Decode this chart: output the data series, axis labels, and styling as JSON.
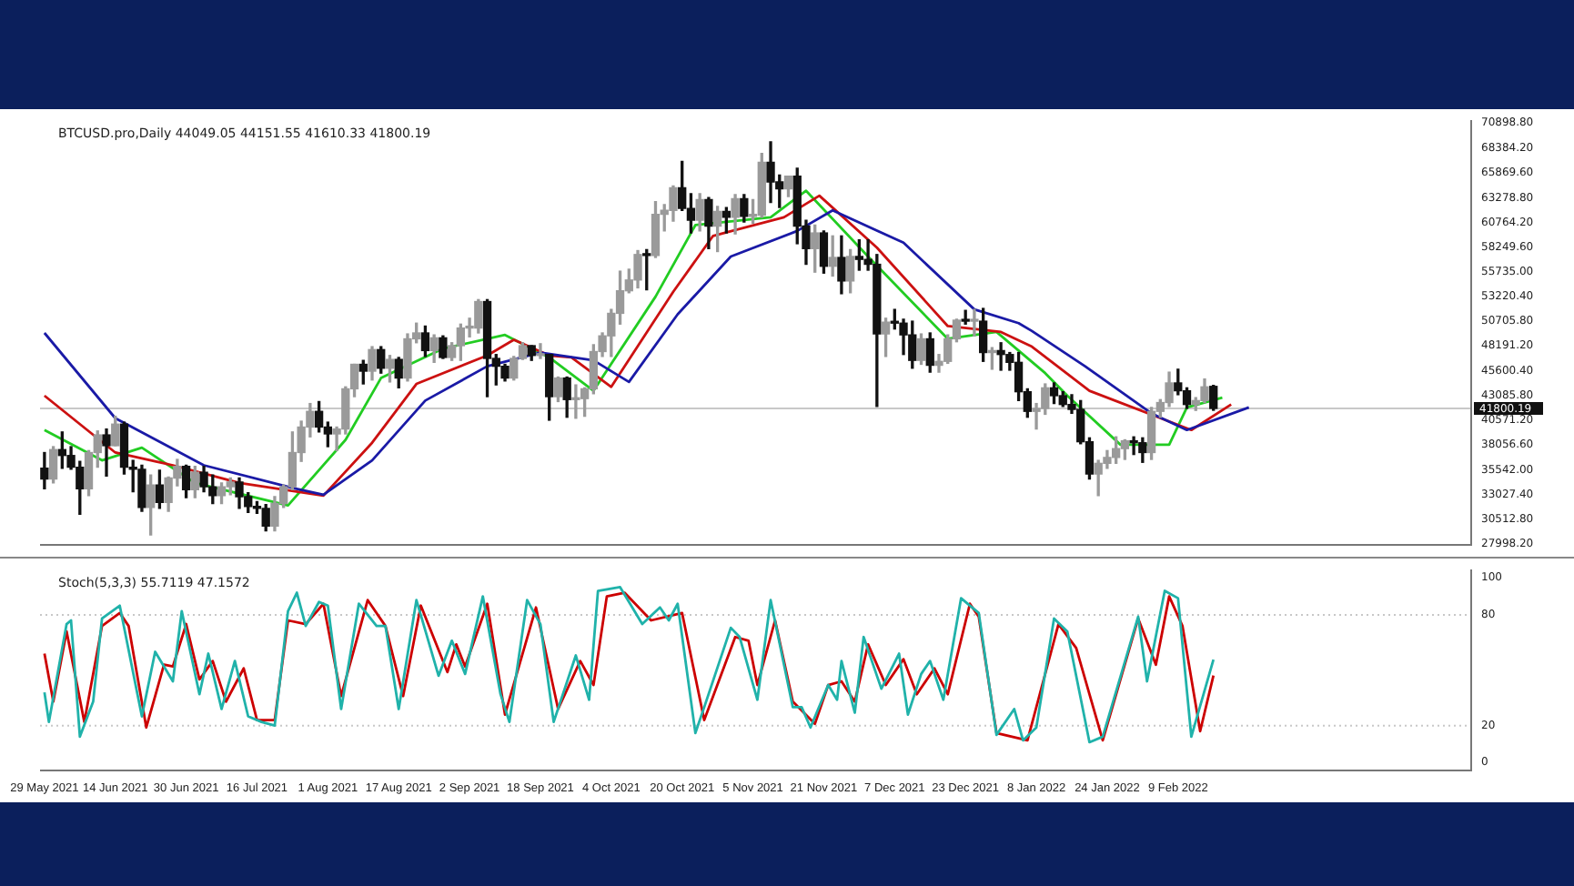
{
  "chart_data": [
    {
      "type": "candlestick",
      "title": "BTCUSD.pro,Daily 44049.05 44151.55 41610.33 41800.19",
      "tick_labels": "y",
      "xlim": [
        "2021-05-28",
        "2022-04-16"
      ],
      "ylim": [
        27900,
        71100
      ],
      "yticks": [
        {
          "value": 70898.8,
          "label": "70898.80"
        },
        {
          "value": 68384.2,
          "label": "68384.20"
        },
        {
          "value": 65869.6,
          "label": "65869.60"
        },
        {
          "value": 63278.8,
          "label": "63278.80"
        },
        {
          "value": 60764.2,
          "label": "60764.20"
        },
        {
          "value": 58249.6,
          "label": "58249.60"
        },
        {
          "value": 55735,
          "label": "55735.00"
        },
        {
          "value": 53220.4,
          "label": "53220.40"
        },
        {
          "value": 50705.8,
          "label": "50705.80"
        },
        {
          "value": 48191.2,
          "label": "48191.20"
        },
        {
          "value": 45600.4,
          "label": "45600.40"
        },
        {
          "value": 43085.8,
          "label": "43085.80"
        },
        {
          "value": 40571.2,
          "label": "40571.20"
        },
        {
          "value": 38056.6,
          "label": "38056.60"
        },
        {
          "value": 35542,
          "label": "35542.00"
        },
        {
          "value": 33027.4,
          "label": "33027.40"
        },
        {
          "value": 30512.8,
          "label": "30512.80"
        },
        {
          "value": 27998.2,
          "label": "27998.20"
        }
      ],
      "ref_lines": [
        {
          "axis": "y",
          "value": 41800.19,
          "label": "41800.19",
          "color": "#c8c8c8"
        }
      ],
      "x": [
        "2021-05-29",
        "2021-05-31",
        "2021-06-02",
        "2021-06-04",
        "2021-06-06",
        "2021-06-08",
        "2021-06-10",
        "2021-06-12",
        "2021-06-14",
        "2021-06-16",
        "2021-06-18",
        "2021-06-20",
        "2021-06-22",
        "2021-06-24",
        "2021-06-26",
        "2021-06-28",
        "2021-06-30",
        "2021-07-02",
        "2021-07-04",
        "2021-07-06",
        "2021-07-08",
        "2021-07-10",
        "2021-07-12",
        "2021-07-14",
        "2021-07-16",
        "2021-07-18",
        "2021-07-20",
        "2021-07-22",
        "2021-07-24",
        "2021-07-26",
        "2021-07-28",
        "2021-07-30",
        "2021-08-01",
        "2021-08-03",
        "2021-08-05",
        "2021-08-07",
        "2021-08-09",
        "2021-08-11",
        "2021-08-13",
        "2021-08-15",
        "2021-08-17",
        "2021-08-19",
        "2021-08-21",
        "2021-08-23",
        "2021-08-25",
        "2021-08-27",
        "2021-08-29",
        "2021-08-31",
        "2021-09-02",
        "2021-09-04",
        "2021-09-06",
        "2021-09-08",
        "2021-09-10",
        "2021-09-12",
        "2021-09-14",
        "2021-09-16",
        "2021-09-18",
        "2021-09-20",
        "2021-09-22",
        "2021-09-24",
        "2021-09-26",
        "2021-09-28",
        "2021-09-30",
        "2021-10-02",
        "2021-10-04",
        "2021-10-06",
        "2021-10-08",
        "2021-10-10",
        "2021-10-12",
        "2021-10-14",
        "2021-10-16",
        "2021-10-18",
        "2021-10-20",
        "2021-10-22",
        "2021-10-24",
        "2021-10-26",
        "2021-10-28",
        "2021-10-30",
        "2021-11-01",
        "2021-11-03",
        "2021-11-05",
        "2021-11-07",
        "2021-11-09",
        "2021-11-11",
        "2021-11-13",
        "2021-11-15",
        "2021-11-17",
        "2021-11-19",
        "2021-11-21",
        "2021-11-23",
        "2021-11-25",
        "2021-11-27",
        "2021-11-29",
        "2021-12-01",
        "2021-12-03",
        "2021-12-05",
        "2021-12-07",
        "2021-12-09",
        "2021-12-11",
        "2021-12-13",
        "2021-12-15",
        "2021-12-17",
        "2021-12-19",
        "2021-12-21",
        "2021-12-23",
        "2021-12-25",
        "2021-12-27",
        "2021-12-29",
        "2021-12-31",
        "2022-01-02",
        "2022-01-04",
        "2022-01-06",
        "2022-01-08",
        "2022-01-10",
        "2022-01-12",
        "2022-01-14",
        "2022-01-16",
        "2022-01-18",
        "2022-01-20",
        "2022-01-22",
        "2022-01-24",
        "2022-01-26",
        "2022-01-28",
        "2022-01-30",
        "2022-02-01",
        "2022-02-03",
        "2022-02-05",
        "2022-02-07",
        "2022-02-09",
        "2022-02-11",
        "2022-02-13",
        "2022-02-15",
        "2022-02-17"
      ],
      "ohlc": [
        [
          35700,
          37300,
          33600,
          34600
        ],
        [
          34600,
          37900,
          34200,
          37600
        ],
        [
          37600,
          39400,
          35700,
          37000
        ],
        [
          37000,
          37900,
          35600,
          35800
        ],
        [
          35800,
          36400,
          31000,
          33600
        ],
        [
          33600,
          37500,
          32900,
          37300
        ],
        [
          37300,
          39500,
          35800,
          39100
        ],
        [
          39100,
          39700,
          34900,
          38000
        ],
        [
          38000,
          41000,
          38000,
          40200
        ],
        [
          40200,
          40400,
          35100,
          35800
        ],
        [
          35800,
          36500,
          33300,
          35600
        ],
        [
          35600,
          36000,
          31300,
          31700
        ],
        [
          31700,
          35000,
          28900,
          34000
        ],
        [
          34000,
          35500,
          31600,
          32200
        ],
        [
          32200,
          34800,
          31300,
          34700
        ],
        [
          34700,
          36600,
          33900,
          35900
        ],
        [
          35900,
          36000,
          32700,
          33500
        ],
        [
          33500,
          35900,
          32700,
          35300
        ],
        [
          35300,
          35900,
          33300,
          33800
        ],
        [
          33800,
          35000,
          32100,
          32900
        ],
        [
          32900,
          34200,
          32100,
          33800
        ],
        [
          33800,
          34700,
          33000,
          34300
        ],
        [
          34300,
          34700,
          31600,
          32800
        ],
        [
          32800,
          33200,
          31200,
          31800
        ],
        [
          31800,
          32300,
          31100,
          31600
        ],
        [
          31600,
          32000,
          29300,
          29800
        ],
        [
          29800,
          32800,
          29300,
          32100
        ],
        [
          32100,
          34000,
          31700,
          33800
        ],
        [
          33800,
          39400,
          33500,
          37300
        ],
        [
          37300,
          40500,
          36400,
          39900
        ],
        [
          39900,
          42300,
          38900,
          41500
        ],
        [
          41500,
          42500,
          39400,
          39900
        ],
        [
          39900,
          40400,
          37900,
          39200
        ],
        [
          39200,
          39900,
          37500,
          39700
        ],
        [
          39700,
          44000,
          39200,
          43800
        ],
        [
          43800,
          46300,
          43000,
          46300
        ],
        [
          46300,
          46700,
          44300,
          45600
        ],
        [
          45600,
          48100,
          44700,
          47800
        ],
        [
          47800,
          48100,
          45400,
          45900
        ],
        [
          45900,
          47200,
          44500,
          46800
        ],
        [
          46800,
          47000,
          43900,
          44900
        ],
        [
          44900,
          49400,
          44600,
          48900
        ],
        [
          48900,
          50500,
          48500,
          49500
        ],
        [
          49500,
          50200,
          47100,
          47700
        ],
        [
          47700,
          49300,
          46500,
          49000
        ],
        [
          49000,
          49200,
          46900,
          47000
        ],
        [
          47000,
          48500,
          46700,
          48200
        ],
        [
          48200,
          50400,
          46700,
          50000
        ],
        [
          50000,
          51000,
          49100,
          50000
        ],
        [
          50000,
          52900,
          49500,
          52700
        ],
        [
          52700,
          52900,
          43000,
          46900
        ],
        [
          46900,
          47300,
          44200,
          46100
        ],
        [
          46100,
          46300,
          44600,
          44900
        ],
        [
          44900,
          47100,
          44700,
          46900
        ],
        [
          46900,
          48500,
          46800,
          48200
        ],
        [
          48200,
          48200,
          46700,
          47200
        ],
        [
          47200,
          48400,
          46900,
          47300
        ],
        [
          47300,
          47300,
          40600,
          43000
        ],
        [
          43000,
          45000,
          42500,
          44900
        ],
        [
          44900,
          45000,
          40900,
          42700
        ],
        [
          42700,
          44200,
          40800,
          42800
        ],
        [
          42800,
          43900,
          41000,
          43800
        ],
        [
          43800,
          48300,
          43300,
          47600
        ],
        [
          47600,
          49500,
          47100,
          49200
        ],
        [
          49200,
          51900,
          47100,
          51500
        ],
        [
          51500,
          55800,
          50400,
          53800
        ],
        [
          53800,
          56000,
          53600,
          54900
        ],
        [
          54900,
          57900,
          54100,
          57500
        ],
        [
          57500,
          58000,
          53900,
          57400
        ],
        [
          57400,
          62900,
          57200,
          61600
        ],
        [
          61600,
          62600,
          59900,
          62000
        ],
        [
          62000,
          64500,
          60900,
          64300
        ],
        [
          64300,
          67000,
          62000,
          62200
        ],
        [
          62200,
          63700,
          59700,
          61000
        ],
        [
          61000,
          63700,
          59900,
          63100
        ],
        [
          63100,
          63300,
          58100,
          60400
        ],
        [
          60400,
          62400,
          57800,
          61900
        ],
        [
          61900,
          62300,
          59700,
          61300
        ],
        [
          61300,
          63600,
          59600,
          63200
        ],
        [
          63200,
          63600,
          60800,
          61400
        ],
        [
          61400,
          63100,
          60700,
          61500
        ],
        [
          61500,
          67800,
          61300,
          66900
        ],
        [
          66900,
          69000,
          62800,
          64900
        ],
        [
          64900,
          65600,
          62300,
          64200
        ],
        [
          64200,
          65500,
          63400,
          65500
        ],
        [
          65500,
          66300,
          58600,
          60400
        ],
        [
          60400,
          61000,
          56500,
          58100
        ],
        [
          58100,
          60500,
          55700,
          59700
        ],
        [
          59700,
          59900,
          55600,
          56300
        ],
        [
          56300,
          59400,
          55300,
          57200
        ],
        [
          57200,
          59400,
          53500,
          54800
        ],
        [
          54800,
          58000,
          53600,
          57300
        ],
        [
          57300,
          59000,
          55900,
          57000
        ],
        [
          57000,
          59000,
          55900,
          56500
        ],
        [
          56500,
          57500,
          42000,
          49400
        ],
        [
          49400,
          51000,
          47100,
          50600
        ],
        [
          50600,
          51900,
          49900,
          50500
        ],
        [
          50500,
          50900,
          47300,
          49300
        ],
        [
          49300,
          50700,
          45900,
          46700
        ],
        [
          46700,
          49400,
          46300,
          48900
        ],
        [
          48900,
          49500,
          45500,
          46200
        ],
        [
          46200,
          47300,
          45500,
          46600
        ],
        [
          46600,
          49300,
          46400,
          48900
        ],
        [
          48900,
          50900,
          48600,
          50800
        ],
        [
          50800,
          51800,
          50400,
          50700
        ],
        [
          50700,
          51900,
          49200,
          50700
        ],
        [
          50700,
          52000,
          46600,
          47500
        ],
        [
          47500,
          48000,
          45800,
          47700
        ],
        [
          47700,
          48500,
          45700,
          47300
        ],
        [
          47300,
          47500,
          45700,
          46500
        ],
        [
          46500,
          47500,
          42600,
          43500
        ],
        [
          43500,
          43800,
          40900,
          41500
        ],
        [
          41500,
          42300,
          39700,
          41800
        ],
        [
          41800,
          44300,
          41200,
          43900
        ],
        [
          43900,
          44400,
          42300,
          43100
        ],
        [
          43100,
          43500,
          42000,
          42200
        ],
        [
          42200,
          43200,
          41300,
          41700
        ],
        [
          41700,
          42600,
          38200,
          38400
        ],
        [
          38400,
          38800,
          34600,
          35100
        ],
        [
          35100,
          36500,
          32900,
          36200
        ],
        [
          36200,
          37500,
          35700,
          36800
        ],
        [
          36800,
          38900,
          36200,
          37700
        ],
        [
          37700,
          38600,
          36600,
          38500
        ],
        [
          38500,
          38900,
          37100,
          38300
        ],
        [
          38300,
          38800,
          36300,
          37300
        ],
        [
          37300,
          41900,
          36600,
          41500
        ],
        [
          41500,
          42700,
          40900,
          42400
        ],
        [
          42400,
          45500,
          42000,
          44400
        ],
        [
          44400,
          45800,
          43200,
          43600
        ],
        [
          43600,
          43900,
          41800,
          42200
        ],
        [
          42200,
          42900,
          41600,
          42600
        ],
        [
          42600,
          44800,
          42400,
          44000
        ],
        [
          44049.05,
          44151.55,
          41610.33,
          41800.19
        ]
      ],
      "series": [
        {
          "type": "line",
          "color": "#1a1aa6",
          "x": [
            "2021-05-29",
            "2021-06-14",
            "2021-07-04",
            "2021-07-24",
            "2021-07-31",
            "2021-08-11",
            "2021-08-23",
            "2021-09-06",
            "2021-09-18",
            "2021-09-30",
            "2021-10-08",
            "2021-10-19",
            "2021-10-31",
            "2021-11-15",
            "2021-11-23",
            "2021-12-09",
            "2021-12-25",
            "2022-01-04",
            "2022-01-07",
            "2022-01-19",
            "2022-02-03",
            "2022-02-11",
            "2022-02-25"
          ],
          "values": [
            49500,
            40800,
            36000,
            33700,
            33000,
            36500,
            42600,
            46100,
            47500,
            46700,
            44500,
            51400,
            57300,
            59900,
            62000,
            58700,
            51900,
            50500,
            49700,
            46100,
            41300,
            39600,
            41900
          ]
        },
        {
          "type": "line",
          "color": "#cc1111",
          "x": [
            "2021-05-29",
            "2021-06-14",
            "2021-06-27",
            "2021-07-12",
            "2021-07-31",
            "2021-08-11",
            "2021-08-21",
            "2021-09-06",
            "2021-09-12",
            "2021-09-20",
            "2021-09-25",
            "2021-10-04",
            "2021-10-18",
            "2021-10-27",
            "2021-11-12",
            "2021-11-20",
            "2021-12-03",
            "2021-12-19",
            "2021-12-31",
            "2022-01-07",
            "2022-01-20",
            "2022-02-12",
            "2022-02-21"
          ],
          "values": [
            43100,
            37300,
            36000,
            34200,
            32900,
            38300,
            44300,
            47200,
            48800,
            47200,
            47000,
            44000,
            53700,
            59400,
            61300,
            63500,
            58200,
            50200,
            49600,
            48100,
            43600,
            39600,
            42200
          ]
        },
        {
          "type": "line",
          "color": "#22cc22",
          "x": [
            "2021-05-29",
            "2021-06-11",
            "2021-06-20",
            "2021-07-02",
            "2021-07-23",
            "2021-08-05",
            "2021-08-13",
            "2021-08-27",
            "2021-09-10",
            "2021-09-20",
            "2021-09-30",
            "2021-10-14",
            "2021-10-23",
            "2021-11-09",
            "2021-11-17",
            "2021-12-01",
            "2021-12-19",
            "2021-12-30",
            "2022-01-10",
            "2022-01-15",
            "2022-01-27",
            "2022-02-07",
            "2022-02-11",
            "2022-02-19"
          ],
          "values": [
            39600,
            36500,
            37800,
            34200,
            31900,
            38600,
            44900,
            47900,
            49300,
            47000,
            43600,
            53200,
            60500,
            61300,
            64000,
            57300,
            48900,
            49600,
            45400,
            43100,
            38100,
            38100,
            41900,
            42900
          ]
        }
      ]
    },
    {
      "type": "line",
      "title": "Stoch(5,3,3) 55.7119 47.1572",
      "xlim": [
        "2021-05-28",
        "2022-04-16"
      ],
      "ylim": [
        -4,
        104
      ],
      "yticks": [
        0,
        20,
        80,
        100
      ],
      "xticks": [
        {
          "value": "2021-05-29",
          "label": "29 May 2021"
        },
        {
          "value": "2021-06-14",
          "label": "14 Jun 2021"
        },
        {
          "value": "2021-06-30",
          "label": "30 Jun 2021"
        },
        {
          "value": "2021-07-16",
          "label": "16 Jul 2021"
        },
        {
          "value": "2021-08-01",
          "label": "1 Aug 2021"
        },
        {
          "value": "2021-08-17",
          "label": "17 Aug 2021"
        },
        {
          "value": "2021-09-02",
          "label": "2 Sep 2021"
        },
        {
          "value": "2021-09-18",
          "label": "18 Sep 2021"
        },
        {
          "value": "2021-10-04",
          "label": "4 Oct 2021"
        },
        {
          "value": "2021-10-20",
          "label": "20 Oct 2021"
        },
        {
          "value": "2021-11-05",
          "label": "5 Nov 2021"
        },
        {
          "value": "2021-11-21",
          "label": "21 Nov 2021"
        },
        {
          "value": "2021-12-07",
          "label": "7 Dec 2021"
        },
        {
          "value": "2021-12-23",
          "label": "23 Dec 2021"
        },
        {
          "value": "2022-01-08",
          "label": "8 Jan 2022"
        },
        {
          "value": "2022-01-24",
          "label": "24 Jan 2022"
        },
        {
          "value": "2022-02-09",
          "label": "9 Feb 2022"
        }
      ],
      "ref_lines": [
        {
          "axis": "y",
          "value": 80,
          "color": "#c8c8c8",
          "line_style": "dotted"
        },
        {
          "axis": "y",
          "value": 20,
          "color": "#c8c8c8",
          "line_style": "dotted"
        }
      ],
      "series": [
        {
          "color": "#20b2aa",
          "x": [
            "2021-05-29",
            "2021-05-30",
            "2021-06-03",
            "2021-06-04",
            "2021-06-06",
            "2021-06-09",
            "2021-06-11",
            "2021-06-15",
            "2021-06-20",
            "2021-06-23",
            "2021-06-27",
            "2021-06-29",
            "2021-07-03",
            "2021-07-05",
            "2021-07-08",
            "2021-07-11",
            "2021-07-14",
            "2021-07-17",
            "2021-07-20",
            "2021-07-23",
            "2021-07-25",
            "2021-07-27",
            "2021-07-30",
            "2021-08-01",
            "2021-08-04",
            "2021-08-08",
            "2021-08-12",
            "2021-08-14",
            "2021-08-17",
            "2021-08-21",
            "2021-08-26",
            "2021-08-29",
            "2021-09-01",
            "2021-09-05",
            "2021-09-09",
            "2021-09-11",
            "2021-09-15",
            "2021-09-18",
            "2021-09-21",
            "2021-09-26",
            "2021-09-29",
            "2021-10-01",
            "2021-10-06",
            "2021-10-11",
            "2021-10-15",
            "2021-10-17",
            "2021-10-19",
            "2021-10-23",
            "2021-10-25",
            "2021-10-31",
            "2021-11-02",
            "2021-11-06",
            "2021-11-09",
            "2021-11-14",
            "2021-11-16",
            "2021-11-18",
            "2021-11-22",
            "2021-11-24",
            "2021-11-25",
            "2021-11-28",
            "2021-11-30",
            "2021-12-04",
            "2021-12-08",
            "2021-12-10",
            "2021-12-13",
            "2021-12-15",
            "2021-12-18",
            "2021-12-22",
            "2021-12-26",
            "2021-12-30",
            "2022-01-03",
            "2022-01-05",
            "2022-01-08",
            "2022-01-12",
            "2022-01-15",
            "2022-01-20",
            "2022-01-23",
            "2022-01-31",
            "2022-02-02",
            "2022-02-06",
            "2022-02-09",
            "2022-02-12",
            "2022-02-17"
          ],
          "values": [
            38,
            22,
            75,
            77,
            14,
            33,
            78,
            85,
            25,
            60,
            44,
            82,
            37,
            59,
            29,
            55,
            25,
            22,
            20,
            82,
            92,
            74,
            87,
            85,
            29,
            86,
            74,
            74,
            29,
            88,
            47,
            66,
            48,
            90,
            37,
            22,
            88,
            75,
            22,
            58,
            34,
            93,
            95,
            75,
            84,
            77,
            86,
            16,
            30,
            73,
            68,
            34,
            88,
            30,
            30,
            19,
            42,
            34,
            55,
            27,
            68,
            40,
            59,
            26,
            48,
            55,
            34,
            89,
            81,
            15,
            29,
            12,
            19,
            78,
            71,
            11,
            14,
            79,
            44,
            93,
            89,
            14,
            55.7119
          ]
        },
        {
          "color": "#cc0000",
          "x": [
            "2021-05-29",
            "2021-05-31",
            "2021-06-03",
            "2021-06-07",
            "2021-06-11",
            "2021-06-15",
            "2021-06-17",
            "2021-06-21",
            "2021-06-25",
            "2021-06-27",
            "2021-06-30",
            "2021-07-03",
            "2021-07-06",
            "2021-07-09",
            "2021-07-13",
            "2021-07-16",
            "2021-07-20",
            "2021-07-23",
            "2021-07-27",
            "2021-07-31",
            "2021-08-04",
            "2021-08-10",
            "2021-08-14",
            "2021-08-18",
            "2021-08-22",
            "2021-08-28",
            "2021-08-30",
            "2021-09-01",
            "2021-09-06",
            "2021-09-10",
            "2021-09-17",
            "2021-09-22",
            "2021-09-27",
            "2021-09-30",
            "2021-10-03",
            "2021-10-07",
            "2021-10-13",
            "2021-10-20",
            "2021-10-25",
            "2021-11-01",
            "2021-11-04",
            "2021-11-06",
            "2021-11-10",
            "2021-11-14",
            "2021-11-19",
            "2021-11-22",
            "2021-11-25",
            "2021-11-28",
            "2021-12-01",
            "2021-12-05",
            "2021-12-09",
            "2021-12-12",
            "2021-12-16",
            "2021-12-19",
            "2021-12-24",
            "2021-12-26",
            "2021-12-30",
            "2022-01-06",
            "2022-01-13",
            "2022-01-17",
            "2022-01-23",
            "2022-01-31",
            "2022-02-04",
            "2022-02-07",
            "2022-02-10",
            "2022-02-14",
            "2022-02-17"
          ],
          "values": [
            59,
            33,
            71,
            22,
            74,
            81,
            74,
            19,
            53,
            52,
            75,
            45,
            55,
            33,
            51,
            23,
            23,
            77,
            75,
            86,
            36,
            88,
            74,
            36,
            85,
            49,
            64,
            52,
            86,
            26,
            84,
            29,
            55,
            42,
            90,
            92,
            77,
            81,
            23,
            68,
            66,
            42,
            77,
            33,
            21,
            42,
            44,
            33,
            64,
            42,
            56,
            37,
            51,
            37,
            86,
            79,
            16,
            12,
            75,
            62,
            12,
            78,
            53,
            90,
            74,
            17,
            47.1572
          ]
        }
      ]
    }
  ]
}
